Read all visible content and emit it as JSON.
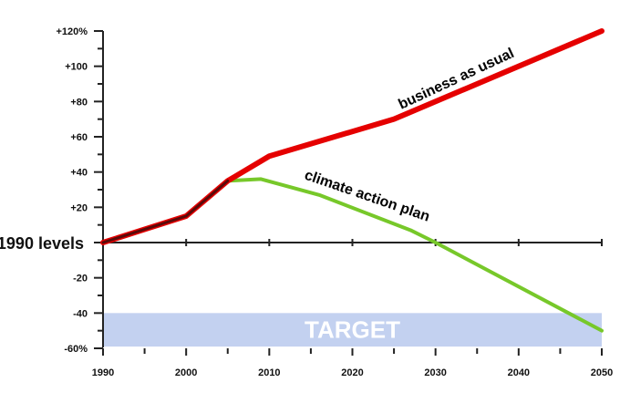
{
  "chart_data": {
    "type": "line",
    "title": "",
    "xlabel": "",
    "ylabel": "",
    "xlim": [
      1990,
      2050
    ],
    "ylim": [
      -60,
      120
    ],
    "x_ticks": [
      1990,
      2000,
      2010,
      2020,
      2030,
      2040,
      2050
    ],
    "x_tick_labels": [
      "1990",
      "2000",
      "2010",
      "2020",
      "2030",
      "2040",
      "2050"
    ],
    "y_ticks": [
      120,
      100,
      80,
      60,
      40,
      20,
      0,
      -20,
      -40,
      -60
    ],
    "y_tick_labels": [
      "+120%",
      "+100",
      "+80",
      "+60",
      "+40",
      "+20",
      "1990 levels",
      "-20",
      "-40",
      "-60%"
    ],
    "series": [
      {
        "name": "business as usual",
        "color": "#e50000",
        "x": [
          1990,
          2000,
          2005,
          2010,
          2025,
          2050
        ],
        "y": [
          0,
          15,
          35,
          49,
          70,
          120
        ]
      },
      {
        "name": "climate action plan",
        "color": "#77c82a",
        "x": [
          2005,
          2009,
          2016,
          2027,
          2030,
          2050
        ],
        "y": [
          35,
          36,
          27,
          7,
          0,
          -50
        ]
      }
    ],
    "historical_overlay": {
      "x": [
        1990,
        2000,
        2005
      ],
      "y": [
        0,
        15,
        35
      ],
      "color": "#5a0a0a"
    },
    "target_band": {
      "label": "TARGET",
      "y_range": [
        -40,
        -59
      ],
      "color": "#c3d1f0"
    }
  }
}
